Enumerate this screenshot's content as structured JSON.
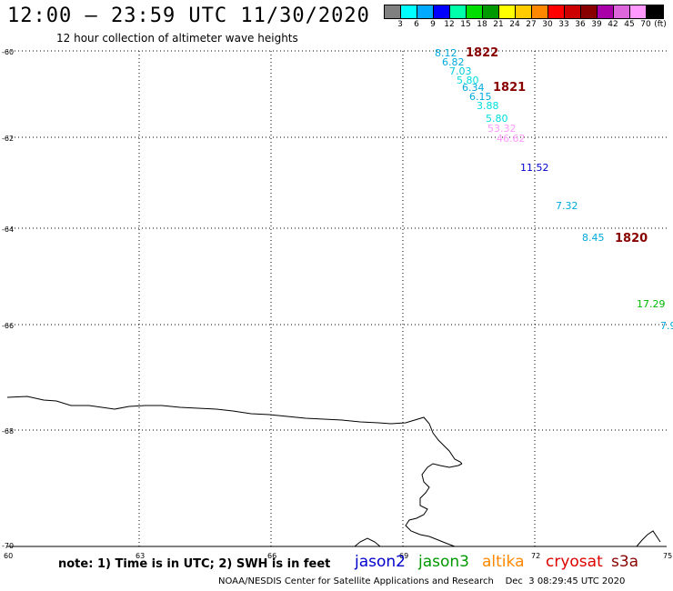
{
  "header": {
    "title": "12:00 – 23:59 UTC 11/30/2020",
    "subtitle": "12 hour collection of altimeter wave heights"
  },
  "legend": {
    "colors": [
      "#808080",
      "#00ffff",
      "#00aaff",
      "#0000ff",
      "#00ffaa",
      "#00dd00",
      "#009900",
      "#ffff00",
      "#ffcc00",
      "#ff8800",
      "#ff0000",
      "#cc0000",
      "#880000",
      "#aa00aa",
      "#dd66dd",
      "#ff99ff",
      "#000000"
    ],
    "labels": [
      "3",
      "6",
      "9",
      "12",
      "15",
      "18",
      "21",
      "24",
      "27",
      "30",
      "33",
      "36",
      "39",
      "42",
      "45",
      "70",
      "(ft)"
    ]
  },
  "map": {
    "lat_labels": [
      "-60",
      "-62",
      "-64",
      "-66",
      "-68",
      "-70"
    ],
    "lon_labels": [
      "60",
      "63",
      "66",
      "69",
      "72",
      "75"
    ],
    "wave_labels": [
      {
        "text": "8.12",
        "color": "#00aadd"
      },
      {
        "text": "6.82",
        "color": "#00aadd"
      },
      {
        "text": "7.03",
        "color": "#00ccdd"
      },
      {
        "text": "5.80",
        "color": "#00dddd"
      },
      {
        "text": "6.34",
        "color": "#00aadd"
      },
      {
        "text": "6.15",
        "color": "#00aadd"
      },
      {
        "text": "3.88",
        "color": "#00dddd"
      },
      {
        "text": "5.80",
        "color": "#00dddd"
      },
      {
        "text": "53.32",
        "color": "#ff99ff"
      },
      {
        "text": "46.62",
        "color": "#ff99ff"
      },
      {
        "text": "11.52",
        "color": "#0000cc"
      },
      {
        "text": "7.32",
        "color": "#00aadd"
      },
      {
        "text": "8.45",
        "color": "#00aadd"
      },
      {
        "text": "17.29",
        "color": "#00bb00"
      },
      {
        "text": "7.9",
        "color": "#00aadd"
      }
    ],
    "time_labels": [
      {
        "text": "1822",
        "color": "#880000"
      },
      {
        "text": "1821",
        "color": "#880000"
      },
      {
        "text": "1820",
        "color": "#880000"
      }
    ]
  },
  "footer": {
    "note": "note: 1) Time is in UTC; 2) SWH is in feet",
    "satellites": [
      {
        "name": "jason2",
        "color": "#0000cc"
      },
      {
        "name": "jason3",
        "color": "#009900"
      },
      {
        "name": "altika",
        "color": "#ff8800"
      },
      {
        "name": "cryosat",
        "color": "#dd0000"
      },
      {
        "name": "s3a",
        "color": "#880000"
      }
    ],
    "credit": "NOAA/NESDIS Center for Satellite Applications and Research    Dec  3 08:29:45 UTC 2020"
  }
}
